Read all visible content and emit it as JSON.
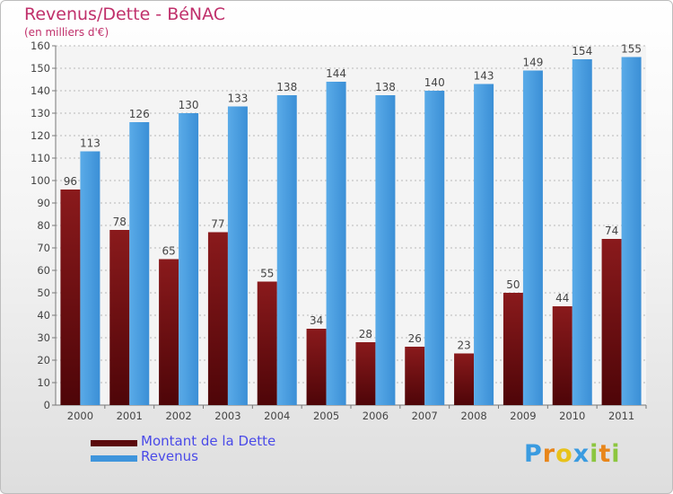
{
  "title": "Revenus/Dette - BéNAC",
  "subtitle": "(en milliers d'€)",
  "chart_data": {
    "type": "bar",
    "categories": [
      "2000",
      "2001",
      "2002",
      "2003",
      "2004",
      "2005",
      "2006",
      "2007",
      "2008",
      "2009",
      "2010",
      "2011"
    ],
    "series": [
      {
        "name": "Montant de la Dette",
        "values": [
          96,
          78,
          65,
          77,
          55,
          34,
          28,
          26,
          23,
          50,
          44,
          74
        ],
        "color": "#7a1416"
      },
      {
        "name": "Revenus",
        "values": [
          113,
          126,
          130,
          133,
          138,
          144,
          138,
          140,
          143,
          149,
          154,
          155
        ],
        "color": "#4f9fe0"
      }
    ],
    "ylim": [
      0,
      160
    ],
    "yticks": [
      0,
      10,
      20,
      30,
      40,
      50,
      60,
      70,
      80,
      90,
      100,
      110,
      120,
      130,
      140,
      150,
      160
    ],
    "grid": true,
    "legend": "bottom-left"
  },
  "legend": {
    "items": [
      {
        "label": "Montant de la Dette",
        "color": "#5b0a0c"
      },
      {
        "label": "Revenus",
        "color": "#3f95dc"
      }
    ]
  },
  "logo": {
    "text": "Proxiti",
    "colors": [
      "#3a9be0",
      "#e8861a",
      "#e8c21a",
      "#3a9be0",
      "#8cc63f",
      "#e8861a",
      "#8cc63f"
    ]
  }
}
